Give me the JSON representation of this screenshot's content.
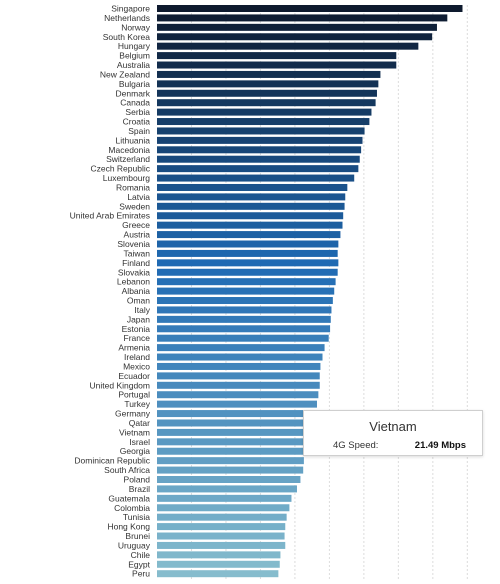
{
  "chart_data": {
    "type": "bar",
    "orientation": "horizontal",
    "categories": [
      "Singapore",
      "Netherlands",
      "Norway",
      "South Korea",
      "Hungary",
      "Belgium",
      "Australia",
      "New Zealand",
      "Bulgaria",
      "Denmark",
      "Canada",
      "Serbia",
      "Croatia",
      "Spain",
      "Lithuania",
      "Macedonia",
      "Switzerland",
      "Czech Republic",
      "Luxembourg",
      "Romania",
      "Latvia",
      "Sweden",
      "United Arab Emirates",
      "Greece",
      "Austria",
      "Slovenia",
      "Taiwan",
      "Finland",
      "Slovakia",
      "Lebanon",
      "Albania",
      "Oman",
      "Italy",
      "Japan",
      "Estonia",
      "France",
      "Armenia",
      "Ireland",
      "Mexico",
      "Ecuador",
      "United Kingdom",
      "Portugal",
      "Turkey",
      "Germany",
      "Qatar",
      "Vietnam",
      "Israel",
      "Georgia",
      "Dominican Republic",
      "South Africa",
      "Poland",
      "Brazil",
      "Guatemala",
      "Colombia",
      "Tunisia",
      "Hong Kong",
      "Brunei",
      "Uruguay",
      "Chile",
      "Egypt",
      "Peru"
    ],
    "series": [
      {
        "values": [
          44.3,
          42.1,
          40.6,
          39.9,
          37.9,
          34.7,
          34.7,
          32.4,
          32.1,
          31.9,
          31.7,
          31.1,
          30.8,
          30.1,
          29.8,
          29.6,
          29.4,
          29.2,
          28.6,
          27.6,
          27.3,
          27.2,
          27.0,
          26.9,
          26.6,
          26.3,
          26.2,
          26.3,
          26.2,
          25.9,
          25.7,
          25.5,
          25.3,
          25.2,
          25.1,
          24.9,
          24.3,
          24.0,
          23.7,
          23.6,
          23.6,
          23.4,
          23.2,
          21.9,
          21.7,
          21.49,
          21.5,
          21.3,
          21.3,
          21.2,
          20.8,
          20.3,
          19.5,
          19.2,
          18.8,
          18.6,
          18.5,
          18.6,
          17.9,
          17.8,
          17.6
        ]
      }
    ],
    "xlim": [
      0,
      48
    ],
    "grid": true,
    "legend": "none",
    "colors": {
      "dark": "#0e1a2e",
      "mid": "#1f6ab3",
      "light": "#86bccd"
    }
  },
  "tooltip": {
    "title": "Vietnam",
    "label": "4G Speed:",
    "value": "21.49 Mbps"
  }
}
